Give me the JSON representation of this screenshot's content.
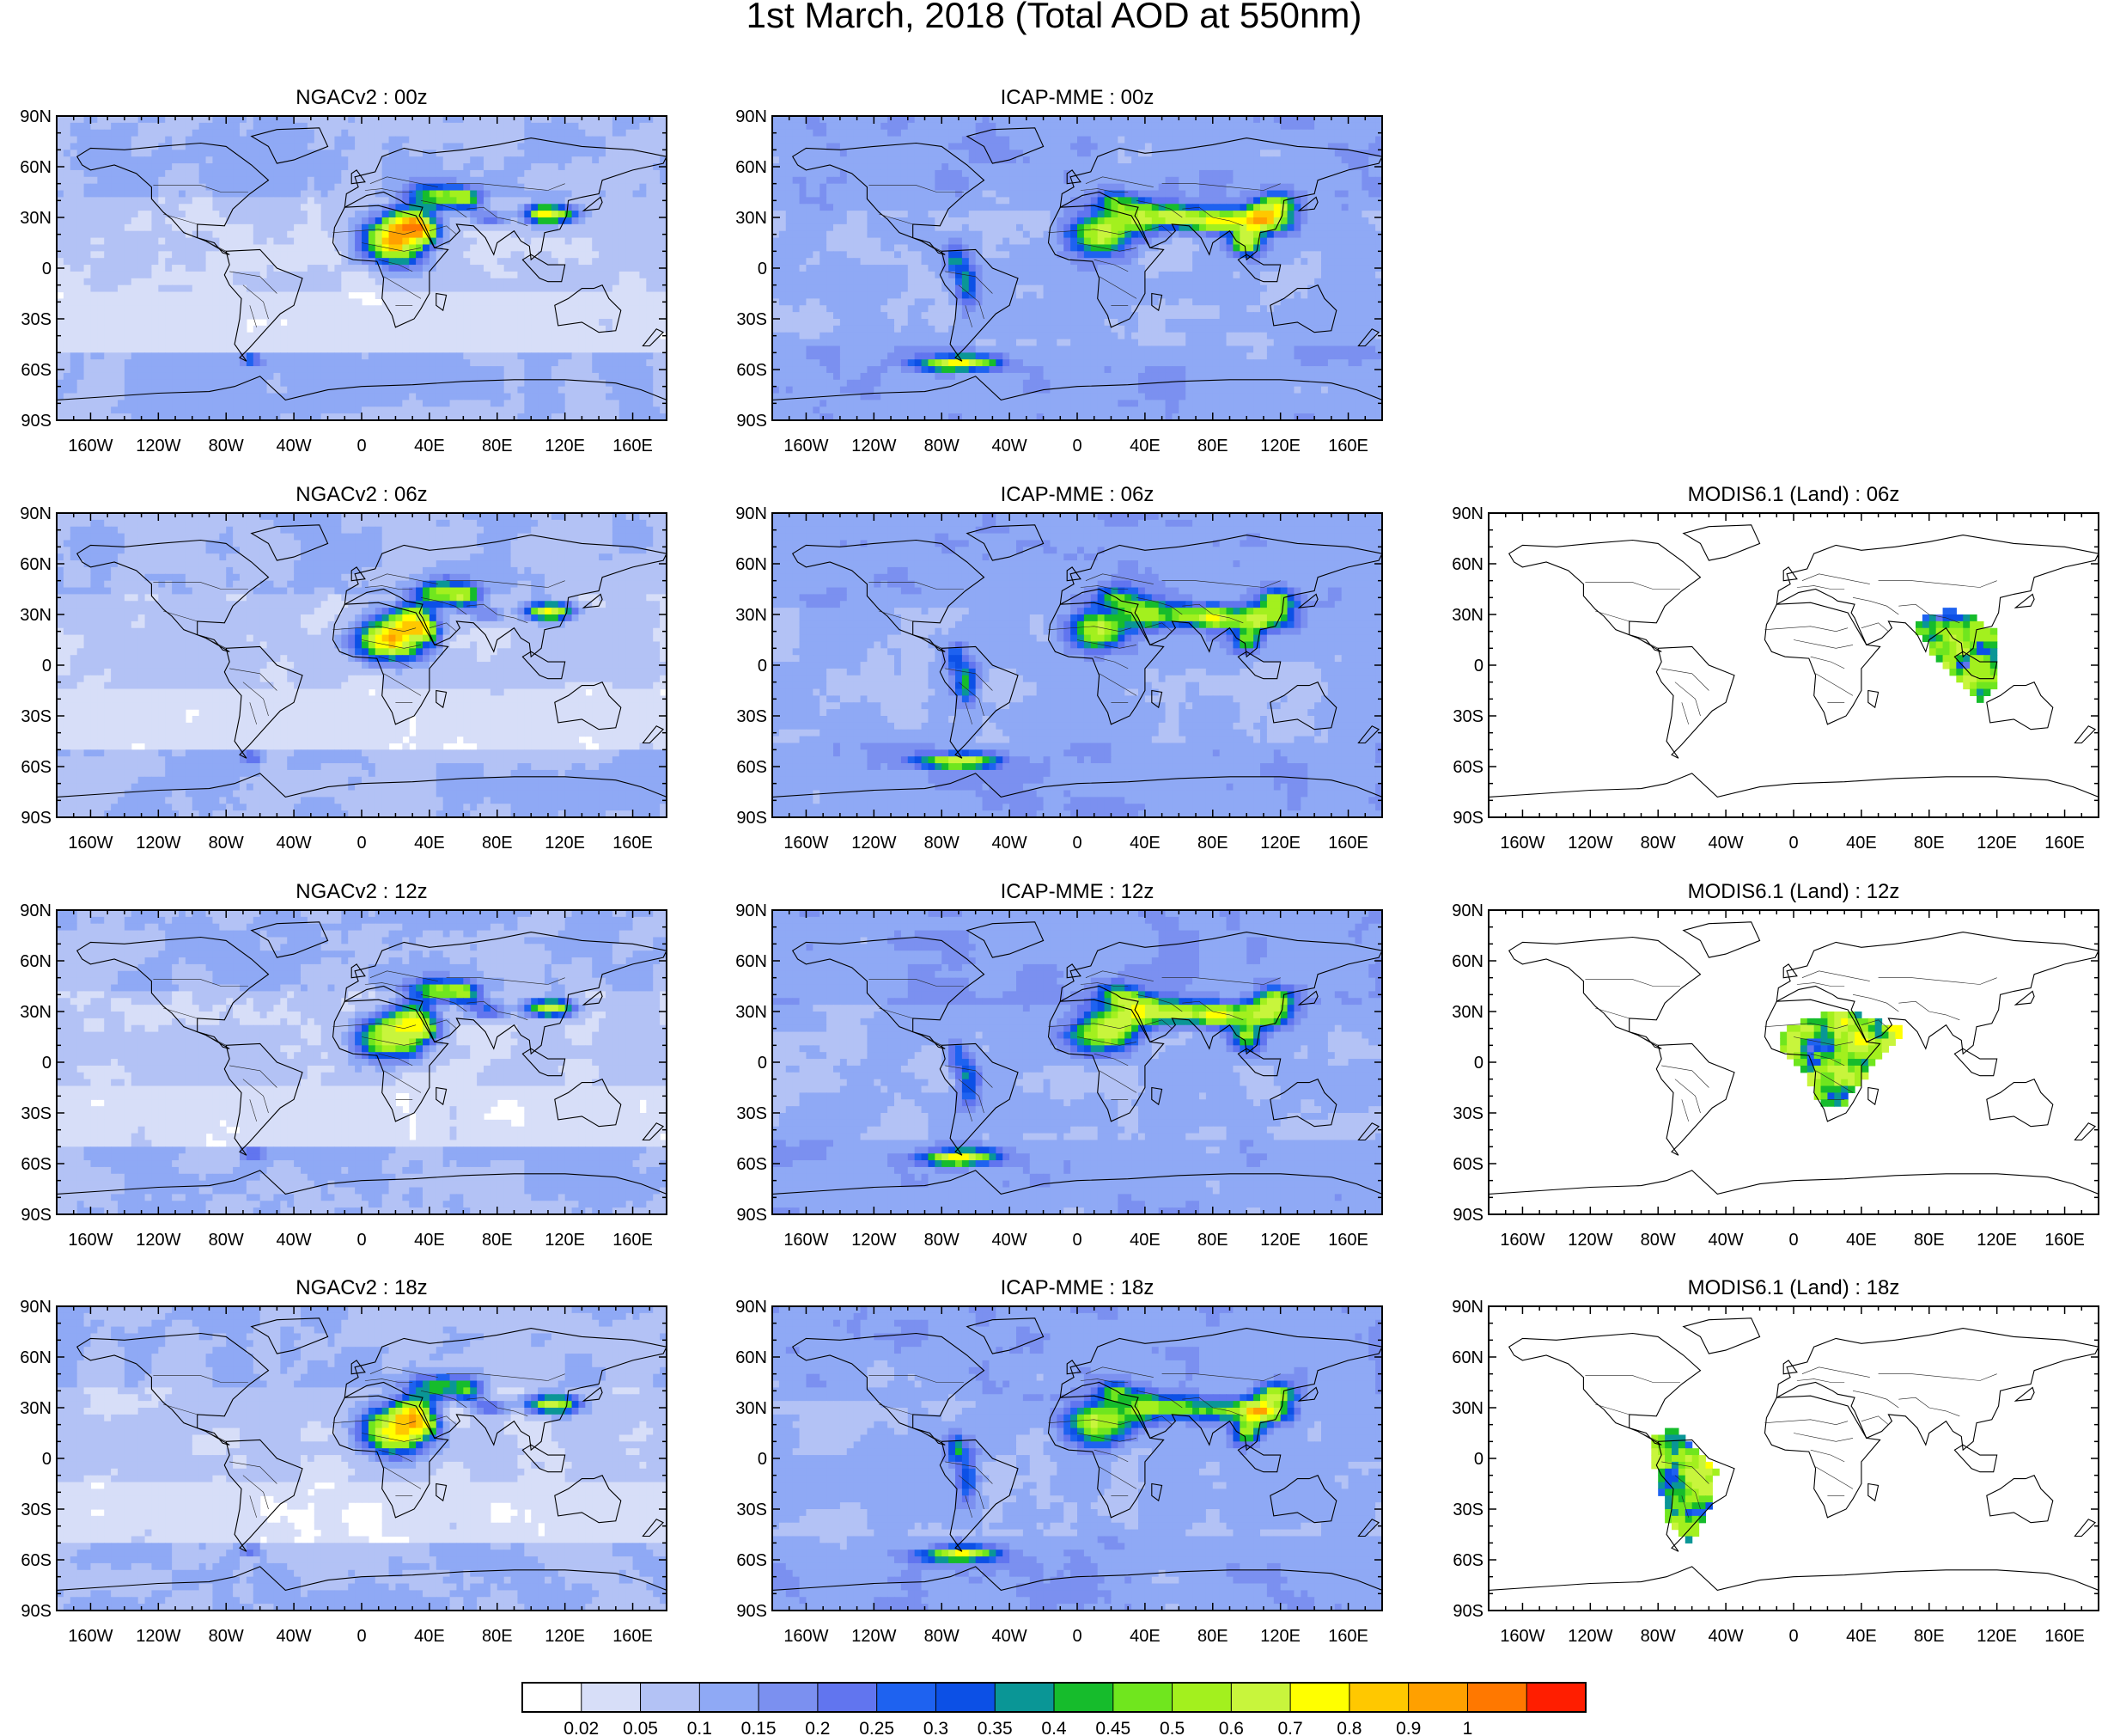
{
  "title": "1st March, 2018 (Total AOD at 550nm)",
  "panels": [
    {
      "title": "NGACv2 : 00z",
      "model": "ngac",
      "hour": 0,
      "row": 0,
      "col": 0
    },
    {
      "title": "ICAP-MME : 00z",
      "model": "icap",
      "hour": 0,
      "row": 0,
      "col": 1
    },
    {
      "title": "NGACv2 : 06z",
      "model": "ngac",
      "hour": 6,
      "row": 1,
      "col": 0
    },
    {
      "title": "ICAP-MME : 06z",
      "model": "icap",
      "hour": 6,
      "row": 1,
      "col": 1
    },
    {
      "title": "MODIS6.1 (Land) : 06z",
      "model": "modis",
      "hour": 6,
      "row": 1,
      "col": 2
    },
    {
      "title": "NGACv2 : 12z",
      "model": "ngac",
      "hour": 12,
      "row": 2,
      "col": 0
    },
    {
      "title": "ICAP-MME : 12z",
      "model": "icap",
      "hour": 12,
      "row": 2,
      "col": 1
    },
    {
      "title": "MODIS6.1 (Land) : 12z",
      "model": "modis",
      "hour": 12,
      "row": 2,
      "col": 2
    },
    {
      "title": "NGACv2 : 18z",
      "model": "ngac",
      "hour": 18,
      "row": 3,
      "col": 0
    },
    {
      "title": "ICAP-MME : 18z",
      "model": "icap",
      "hour": 18,
      "row": 3,
      "col": 1
    },
    {
      "title": "MODIS6.1 (Land) : 18z",
      "model": "modis",
      "hour": 18,
      "row": 3,
      "col": 2
    }
  ],
  "axes": {
    "lat_labels": [
      "90N",
      "60N",
      "30N",
      "0",
      "30S",
      "60S",
      "90S"
    ],
    "lon_labels": [
      "160W",
      "120W",
      "80W",
      "40W",
      "0",
      "40E",
      "80E",
      "120E",
      "160E"
    ],
    "lon_values": [
      -160,
      -120,
      -80,
      -40,
      0,
      40,
      80,
      120,
      160
    ],
    "lat_values": [
      90,
      60,
      30,
      0,
      -30,
      -60,
      -90
    ]
  },
  "colorbar": {
    "colors": [
      "#ffffff",
      "#d7def8",
      "#b3c2f5",
      "#8fa9f5",
      "#7b90f0",
      "#6175ef",
      "#1e62f0",
      "#0c50e6",
      "#0a9696",
      "#16bc2c",
      "#70e61e",
      "#a3f01e",
      "#c8f53c",
      "#ffff00",
      "#ffc800",
      "#ffa000",
      "#ff7800",
      "#ff1e00"
    ],
    "labels": [
      "0.02",
      "0.05",
      "0.1",
      "0.15",
      "0.2",
      "0.25",
      "0.3",
      "0.35",
      "0.4",
      "0.45",
      "0.5",
      "0.6",
      "0.7",
      "0.8",
      "0.9",
      "1"
    ]
  }
}
